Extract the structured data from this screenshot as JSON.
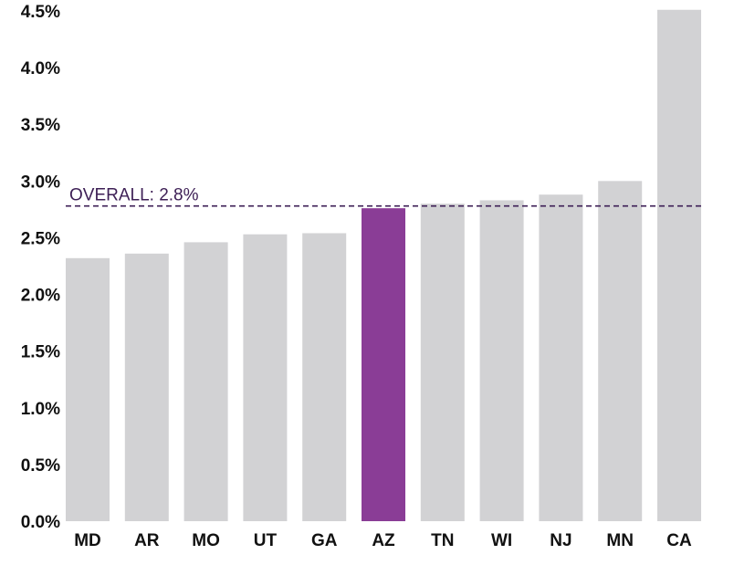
{
  "chart_data": {
    "type": "bar",
    "title": "",
    "xlabel": "",
    "ylabel": "",
    "categories": [
      "MD",
      "AR",
      "MO",
      "UT",
      "GA",
      "AZ",
      "TN",
      "WI",
      "NJ",
      "MN",
      "CA"
    ],
    "values": [
      2.32,
      2.36,
      2.46,
      2.53,
      2.54,
      2.76,
      2.8,
      2.83,
      2.88,
      3.0,
      4.51
    ],
    "highlight": "AZ",
    "ylim": [
      0,
      4.5
    ],
    "yticks": [
      0,
      0.5,
      1.0,
      1.5,
      2.0,
      2.5,
      3.0,
      3.5,
      4.0,
      4.5
    ],
    "ytick_labels": [
      "0.0%",
      "0.5%",
      "1.0%",
      "1.5%",
      "2.0%",
      "2.5%",
      "3.0%",
      "3.5%",
      "4.0%",
      "4.5%"
    ],
    "grid": false,
    "reference_line": {
      "value": 2.78,
      "label": "OVERALL: 2.8%",
      "style": "dashed"
    },
    "colors": {
      "bar": "#d2d2d4",
      "highlight": "#8a3d96",
      "reference": "#3d1f55"
    }
  }
}
